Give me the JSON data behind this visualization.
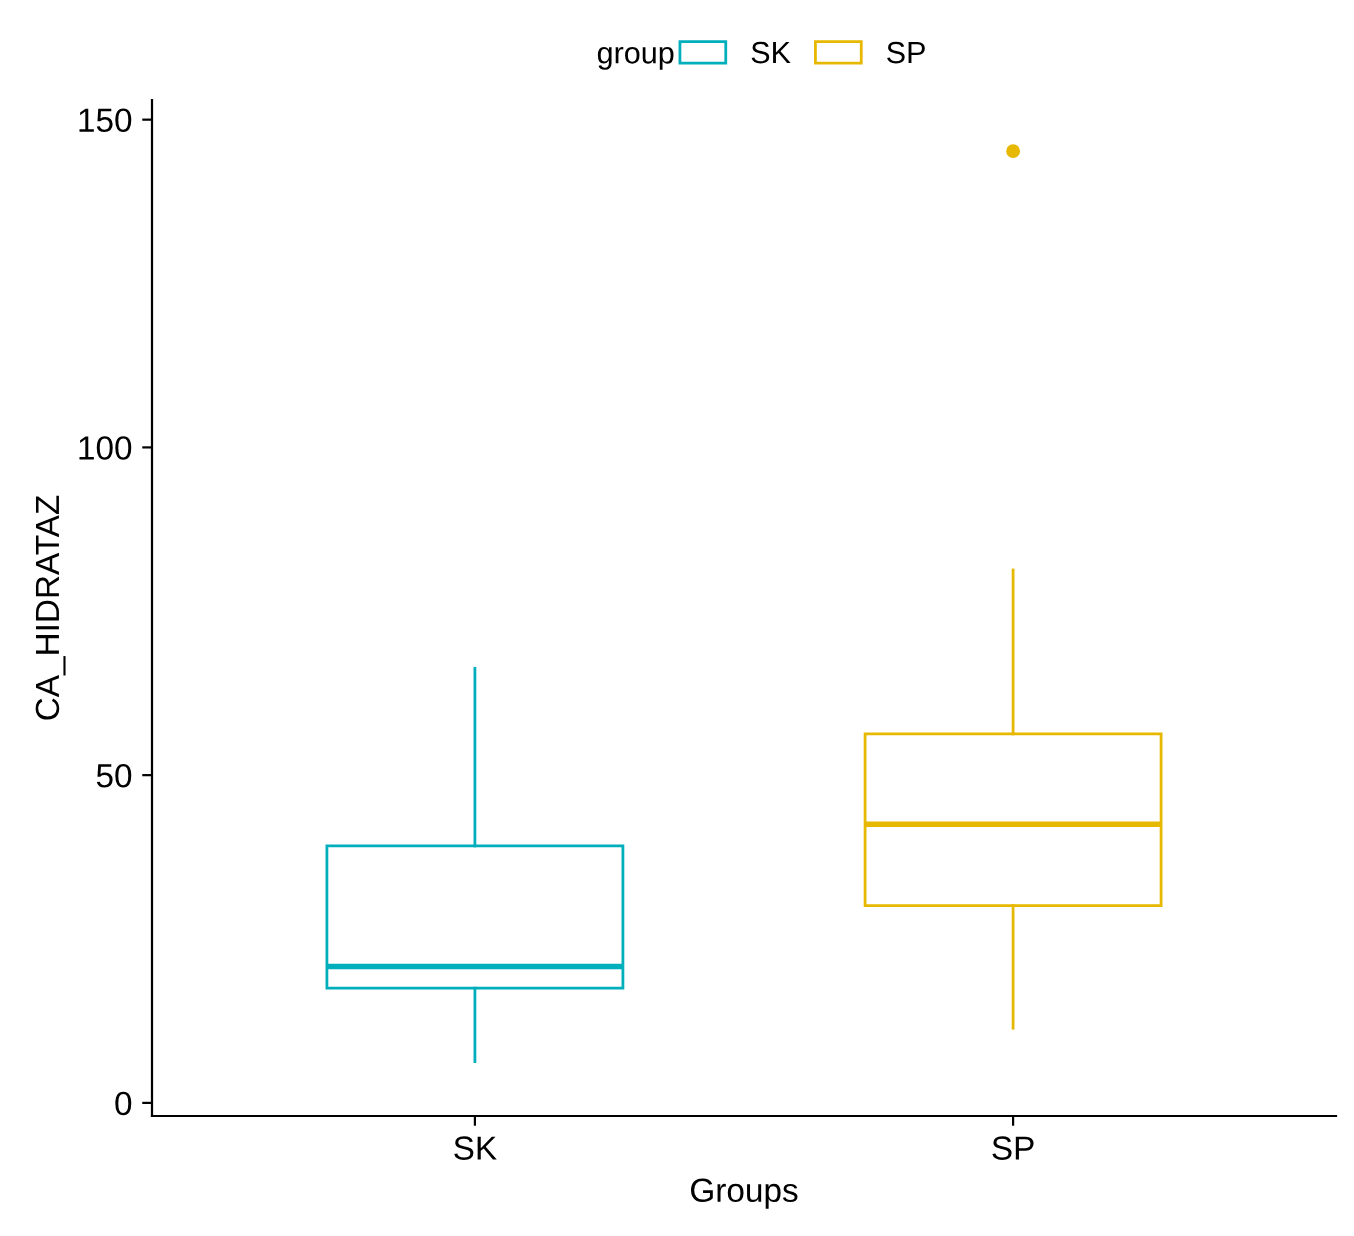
{
  "chart_data": {
    "type": "box",
    "xlabel": "Groups",
    "ylabel": "CA_HIDRATAZ",
    "legend_title": "group",
    "legend": "top",
    "categories": [
      "SK",
      "SP"
    ],
    "series": [
      {
        "name": "SK",
        "color": "#00afbb",
        "boxes": [
          {
            "low": 6.3,
            "q1": 17.5,
            "median": 20.8,
            "q3": 39.2,
            "high": 66.3
          },
          null
        ]
      },
      {
        "name": "SP",
        "color": "#e7b800",
        "boxes": [
          null,
          {
            "low": 11.4,
            "q1": 30.1,
            "median": 42.5,
            "q3": 56.3,
            "high": 81.3,
            "outliers": [
              145.2
            ]
          }
        ]
      }
    ],
    "ylim": [
      -2,
      153
    ],
    "yticks": [
      0,
      50,
      100,
      150
    ],
    "grid": false
  }
}
